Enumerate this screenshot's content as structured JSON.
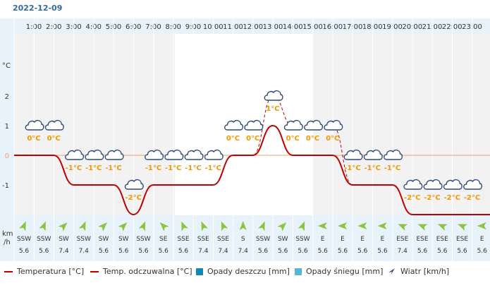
{
  "date": "2022-12-09",
  "wind_unit_line1": "km",
  "wind_unit_line2": "/h",
  "colors": {
    "temperature": "#c00000",
    "feels_like": "#c00000",
    "rain": "#1289b5",
    "snow": "#55b6d6",
    "wind_arrow": "#8cc43f",
    "header_bg": "#e7f2fa",
    "night_bg": "#f2f2f2",
    "zero_line": "#f0a070",
    "temp_label": "#f39800"
  },
  "legend": {
    "temperature": "Temperatura [°C]",
    "feels_like": "Temp. odczuwalna [°C]",
    "rain": "Opady deszczu [mm]",
    "snow": "Opady śniegu [mm]",
    "wind": "Wiatr [km/h]"
  },
  "chart_data": {
    "type": "line",
    "x": [
      "1:00",
      "2:00",
      "3:00",
      "4:00",
      "5:00",
      "6:00",
      "7:00",
      "8:00",
      "9:00",
      "10:00",
      "11:00",
      "12:00",
      "13:00",
      "14:00",
      "15:00",
      "16:00",
      "17:00",
      "18:00",
      "19:00",
      "20:00",
      "21:00",
      "22:00",
      "23:00"
    ],
    "y_unit": "°C",
    "y_ticks": [
      "2",
      "1",
      "0",
      "-1"
    ],
    "ylim": [
      -2,
      2
    ],
    "series": [
      {
        "name": "Temperatura [°C]",
        "values": [
          0,
          0,
          -1,
          -1,
          -1,
          -2,
          -1,
          -1,
          -1,
          -1,
          0,
          0,
          1,
          0,
          0,
          0,
          -1,
          -1,
          -1,
          -2,
          -2,
          -2,
          -2
        ]
      },
      {
        "name": "Temp. odczuwalna [°C]",
        "values": [
          0,
          0,
          -1,
          -1,
          -1,
          -2,
          -1,
          -1,
          -1,
          -1,
          0,
          0,
          2,
          1,
          1,
          1,
          -1,
          -1,
          -1,
          -2,
          -2,
          -2,
          -2
        ]
      }
    ],
    "temp_labels": [
      "0°C",
      "0°C",
      "-1°C",
      "-1°C",
      "-1°C",
      "-2°C",
      "-1°C",
      "-1°C",
      "-1°C",
      "-1°C",
      "0°C",
      "0°C",
      "1°C",
      "0°C",
      "0°C",
      "0°C",
      "-1°C",
      "-1°C",
      "-1°C",
      "-2°C",
      "-2°C",
      "-2°C",
      "-2°C"
    ],
    "wind_dir": [
      "SSW",
      "SSW",
      "SW",
      "SSW",
      "SW",
      "SW",
      "SSW",
      "SE",
      "SSE",
      "SSE",
      "SSE",
      "S",
      "SSW",
      "SW",
      "SSW",
      "E",
      "E",
      "E",
      "E",
      "ESE",
      "ESE",
      "ESE",
      "ESE",
      "E"
    ],
    "wind_speed": [
      "5.6",
      "5.6",
      "7.4",
      "7.4",
      "5.6",
      "5.6",
      "5.6",
      "5.6",
      "5.6",
      "7.4",
      "7.4",
      "7.4",
      "5.6",
      "5.6",
      "5.6",
      "5.6",
      "5.6",
      "5.6",
      "5.6",
      "7.4",
      "5.6",
      "5.6",
      "5.6",
      "5.6"
    ],
    "icons": [
      "cloud-icon"
    ]
  }
}
